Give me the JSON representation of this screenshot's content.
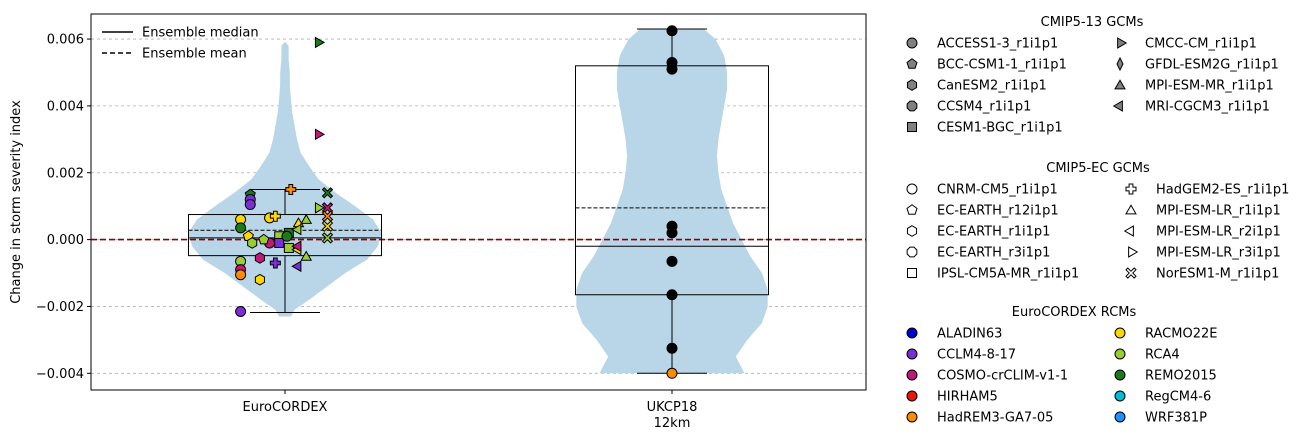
{
  "chart_data": {
    "type": "violin",
    "ylabel": "Change in storm severity index",
    "ylim": [
      -0.0045,
      0.00675
    ],
    "yticks": [
      "0.006",
      "0.004",
      "0.002",
      "0.000",
      "−0.002",
      "−0.004"
    ],
    "ytick_values": [
      0.006,
      0.004,
      0.002,
      0.0,
      -0.002,
      -0.004
    ],
    "grid": "horizontal dashed",
    "reference_line": {
      "y": 0.0,
      "color": "#8b0000",
      "style": "dashed"
    },
    "categories": [
      {
        "line1": "EuroCORDEX",
        "line2": ""
      },
      {
        "line1": "UKCP18",
        "line2": "12km"
      }
    ],
    "line_legend": [
      {
        "label": "Ensemble median",
        "style": "solid"
      },
      {
        "label": "Ensemble mean",
        "style": "dashed"
      }
    ],
    "groups": [
      {
        "category": "EuroCORDEX",
        "box": {
          "q1": -0.00048,
          "median": 5e-05,
          "q3": 0.00075,
          "mean": 0.00028,
          "whisker_low": -0.00218,
          "whisker_high": 0.0015
        },
        "violin": [
          [
            -0.0023,
            5e-05
          ],
          [
            -0.0021,
            8e-05
          ],
          [
            -0.0018,
            0.0002
          ],
          [
            -0.0014,
            0.00035
          ],
          [
            -0.001,
            0.0005
          ],
          [
            -0.0006,
            0.00068
          ],
          [
            -0.0002,
            0.00077
          ],
          [
            0.0002,
            0.0008
          ],
          [
            0.0006,
            0.00073
          ],
          [
            0.001,
            0.00058
          ],
          [
            0.0014,
            0.00042
          ],
          [
            0.0018,
            0.00028
          ],
          [
            0.0022,
            0.0002
          ],
          [
            0.0026,
            0.00013
          ],
          [
            0.003,
            0.0001
          ],
          [
            0.0034,
            8e-05
          ],
          [
            0.0038,
            6e-05
          ],
          [
            0.0042,
            5e-05
          ],
          [
            0.0046,
            4e-05
          ],
          [
            0.005,
            4e-05
          ],
          [
            0.0054,
            3e-05
          ],
          [
            0.0058,
            3e-05
          ],
          [
            0.00592,
            0.0
          ]
        ],
        "points": [
          {
            "dx": -0.18,
            "y": 0.00135,
            "marker": "pentagon",
            "color": "#1b7a1b"
          },
          {
            "dx": -0.18,
            "y": 0.0012,
            "marker": "circle",
            "color": "#7b2fd2"
          },
          {
            "dx": -0.18,
            "y": 0.00105,
            "marker": "circle",
            "color": "#7b2fd2"
          },
          {
            "dx": 0.03,
            "y": 0.0015,
            "marker": "cross",
            "color": "#ff8c00"
          },
          {
            "dx": 0.22,
            "y": 0.0014,
            "marker": "x",
            "color": "#1b7a1b"
          },
          {
            "dx": 0.17,
            "y": 0.0059,
            "marker": "tri_right",
            "color": "#1b7a1b"
          },
          {
            "dx": 0.17,
            "y": 0.00315,
            "marker": "tri_right",
            "color": "#c2187a"
          },
          {
            "dx": 0.17,
            "y": 0.00095,
            "marker": "tri_right",
            "color": "#9acd32"
          },
          {
            "dx": 0.22,
            "y": 0.00095,
            "marker": "x",
            "color": "#c2187a"
          },
          {
            "dx": 0.22,
            "y": 0.0004,
            "marker": "x",
            "color": "#ffd700"
          },
          {
            "dx": 0.22,
            "y": 5e-05,
            "marker": "x",
            "color": "#9acd32"
          },
          {
            "dx": 0.22,
            "y": 0.0007,
            "marker": "x",
            "color": "#ff8c00"
          },
          {
            "dx": -0.23,
            "y": 0.0006,
            "marker": "circle",
            "color": "#ffd700"
          },
          {
            "dx": -0.23,
            "y": 0.00035,
            "marker": "circle",
            "color": "#1b7a1b"
          },
          {
            "dx": -0.23,
            "y": -0.00065,
            "marker": "circle",
            "color": "#9acd32"
          },
          {
            "dx": -0.23,
            "y": -0.0009,
            "marker": "circle",
            "color": "#c2187a"
          },
          {
            "dx": -0.23,
            "y": -0.00105,
            "marker": "circle",
            "color": "#ff8c00"
          },
          {
            "dx": -0.23,
            "y": -0.00215,
            "marker": "circle",
            "color": "#7b2fd2"
          },
          {
            "dx": -0.19,
            "y": 0.0001,
            "marker": "pentagon",
            "color": "#ffd700"
          },
          {
            "dx": -0.17,
            "y": -0.0001,
            "marker": "hexagon",
            "color": "#9acd32"
          },
          {
            "dx": -0.13,
            "y": -0.00055,
            "marker": "hexagon",
            "color": "#c2187a"
          },
          {
            "dx": -0.13,
            "y": -0.0012,
            "marker": "hexagon",
            "color": "#ffd700"
          },
          {
            "dx": -0.08,
            "y": 0.00065,
            "marker": "circle",
            "color": "#ffd700"
          },
          {
            "dx": -0.08,
            "y": -0.0001,
            "marker": "circle",
            "color": "#c2187a"
          },
          {
            "dx": -0.05,
            "y": 0.0007,
            "marker": "cross",
            "color": "#ffd700"
          },
          {
            "dx": -0.05,
            "y": -0.0007,
            "marker": "cross",
            "color": "#7b2fd2"
          },
          {
            "dx": -0.03,
            "y": 0.0001,
            "marker": "square",
            "color": "#9acd32"
          },
          {
            "dx": -0.03,
            "y": -0.0001,
            "marker": "square",
            "color": "#7b2fd2"
          },
          {
            "dx": 0.02,
            "y": 0.0002,
            "marker": "square",
            "color": "#1b7a1b"
          },
          {
            "dx": 0.02,
            "y": -0.00025,
            "marker": "square",
            "color": "#9acd32"
          },
          {
            "dx": 0.07,
            "y": 0.0005,
            "marker": "tri_up",
            "color": "#ffd700"
          },
          {
            "dx": 0.07,
            "y": 0.0003,
            "marker": "tri_left",
            "color": "#9acd32"
          },
          {
            "dx": 0.07,
            "y": -0.0003,
            "marker": "tri_left",
            "color": "#ffd700"
          },
          {
            "dx": 0.07,
            "y": -0.0002,
            "marker": "tri_left",
            "color": "#c2187a"
          },
          {
            "dx": 0.11,
            "y": 0.0006,
            "marker": "tri_up",
            "color": "#9acd32"
          },
          {
            "dx": 0.11,
            "y": -0.0005,
            "marker": "tri_up",
            "color": "#9acd32"
          },
          {
            "dx": 0.07,
            "y": -0.0008,
            "marker": "tri_left",
            "color": "#7b2fd2"
          },
          {
            "dx": -0.11,
            "y": 0.0,
            "marker": "pentagon",
            "color": "#9acd32"
          },
          {
            "dx": 0.01,
            "y": 0.0001,
            "marker": "circle",
            "color": "#1b7a1b"
          }
        ]
      },
      {
        "category": "UKCP18 12km",
        "box": {
          "q1": -0.00165,
          "median": -0.0002,
          "q3": 0.0052,
          "mean": 0.00095,
          "whisker_low": -0.004,
          "whisker_high": 0.0063
        },
        "violin": [
          [
            -0.004,
            0.25
          ],
          [
            -0.0035,
            0.22
          ],
          [
            -0.003,
            0.26
          ],
          [
            -0.0025,
            0.31
          ],
          [
            -0.002,
            0.33
          ],
          [
            -0.0015,
            0.33
          ],
          [
            -0.001,
            0.31
          ],
          [
            -0.0005,
            0.27
          ],
          [
            0.0,
            0.24
          ],
          [
            0.0005,
            0.21
          ],
          [
            0.001,
            0.19
          ],
          [
            0.0015,
            0.17
          ],
          [
            0.002,
            0.16
          ],
          [
            0.0025,
            0.155
          ],
          [
            0.003,
            0.16
          ],
          [
            0.0035,
            0.17
          ],
          [
            0.004,
            0.18
          ],
          [
            0.0045,
            0.19
          ],
          [
            0.005,
            0.19
          ],
          [
            0.0055,
            0.18
          ],
          [
            0.006,
            0.15
          ],
          [
            0.0063,
            0.11
          ]
        ],
        "points": [
          {
            "dx": 0.0,
            "y": 0.00625,
            "marker": "circle",
            "color": "#000000"
          },
          {
            "dx": 0.0,
            "y": 0.0053,
            "marker": "circle",
            "color": "#000000"
          },
          {
            "dx": 0.0,
            "y": 0.0051,
            "marker": "circle",
            "color": "#000000"
          },
          {
            "dx": 0.0,
            "y": 0.0004,
            "marker": "circle",
            "color": "#000000"
          },
          {
            "dx": 0.0,
            "y": 0.0002,
            "marker": "circle",
            "color": "#000000"
          },
          {
            "dx": 0.0,
            "y": -0.00065,
            "marker": "circle",
            "color": "#000000"
          },
          {
            "dx": 0.0,
            "y": -0.00165,
            "marker": "circle",
            "color": "#000000"
          },
          {
            "dx": 0.0,
            "y": -0.00325,
            "marker": "circle",
            "color": "#000000"
          },
          {
            "dx": 0.0,
            "y": -0.004,
            "marker": "circle",
            "color": "#ff8c00"
          }
        ]
      }
    ],
    "legend_sections": [
      {
        "title": "CMIP5-13 GCMs",
        "fill": "#808080",
        "items": [
          {
            "label": "ACCESS1-3_r1i1p1",
            "marker": "circle"
          },
          {
            "label": "BCC-CSM1-1_r1i1p1",
            "marker": "pentagon"
          },
          {
            "label": "CanESM2_r1i1p1",
            "marker": "hexagon"
          },
          {
            "label": "CCSM4_r1i1p1",
            "marker": "octagon"
          },
          {
            "label": "CESM1-BGC_r1i1p1",
            "marker": "square"
          },
          {
            "label": "CMCC-CM_r1i1p1",
            "marker": "tri_right"
          },
          {
            "label": "GFDL-ESM2G_r1i1p1",
            "marker": "thin_diamond"
          },
          {
            "label": "MPI-ESM-MR_r1i1p1",
            "marker": "tri_up"
          },
          {
            "label": "MRI-CGCM3_r1i1p1",
            "marker": "tri_left"
          }
        ]
      },
      {
        "title": "CMIP5-EC GCMs",
        "fill": "#ffffff",
        "items": [
          {
            "label": "CNRM-CM5_r1i1p1",
            "marker": "circle"
          },
          {
            "label": "EC-EARTH_r12i1p1",
            "marker": "pentagon"
          },
          {
            "label": "EC-EARTH_r1i1p1",
            "marker": "hexagon"
          },
          {
            "label": "EC-EARTH_r3i1p1",
            "marker": "octagon"
          },
          {
            "label": "IPSL-CM5A-MR_r1i1p1",
            "marker": "square"
          },
          {
            "label": "HadGEM2-ES_r1i1p1",
            "marker": "cross"
          },
          {
            "label": "MPI-ESM-LR_r1i1p1",
            "marker": "tri_up"
          },
          {
            "label": "MPI-ESM-LR_r2i1p1",
            "marker": "tri_left"
          },
          {
            "label": "MPI-ESM-LR_r3i1p1",
            "marker": "tri_right"
          },
          {
            "label": "NorESM1-M_r1i1p1",
            "marker": "x"
          }
        ]
      },
      {
        "title": "EuroCORDEX RCMs",
        "fill": null,
        "items": [
          {
            "label": "ALADIN63",
            "marker": "circle",
            "color": "#0000cd"
          },
          {
            "label": "CCLM4-8-17",
            "marker": "circle",
            "color": "#7b2fd2"
          },
          {
            "label": "COSMO-crCLIM-v1-1",
            "marker": "circle",
            "color": "#c2187a"
          },
          {
            "label": "HIRHAM5",
            "marker": "circle",
            "color": "#e8170c"
          },
          {
            "label": "HadREM3-GA7-05",
            "marker": "circle",
            "color": "#ff8c00"
          },
          {
            "label": "RACMO22E",
            "marker": "circle",
            "color": "#ffd700"
          },
          {
            "label": "RCA4",
            "marker": "circle",
            "color": "#9acd32"
          },
          {
            "label": "REMO2015",
            "marker": "circle",
            "color": "#1b7a1b"
          },
          {
            "label": "RegCM4-6",
            "marker": "circle",
            "color": "#00bcd4"
          },
          {
            "label": "WRF381P",
            "marker": "circle",
            "color": "#1e90ff"
          }
        ]
      }
    ],
    "colors": {
      "violin": "#b9d5e8",
      "reference": "#8b0000",
      "grid": "#b0b0b0"
    }
  }
}
